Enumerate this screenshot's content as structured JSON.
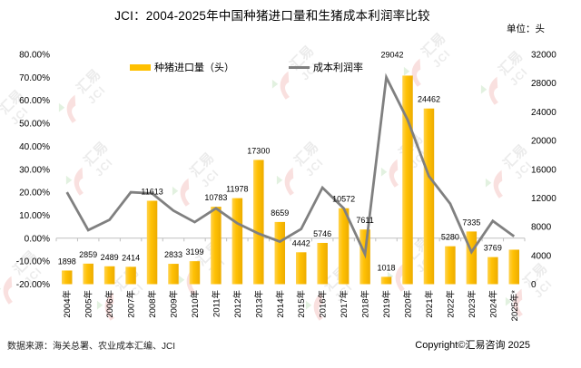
{
  "footer": {
    "source": "数据来源：海关总署、农业成本汇编、JCI",
    "copyright": "Copyright©汇易咨询 2025"
  },
  "watermark": {
    "cn": "汇易",
    "en": "JCI",
    "red": "#E0473C",
    "green": "#54AE45",
    "gray": "#8a8a8a"
  },
  "chart_data": {
    "type": "bar+line combo",
    "title": "JCI：2004-2025年中国种猪进口量和生猪成本利润率比较",
    "unit_label": "单位：头",
    "legend_position": "top",
    "grid": "off",
    "categories": [
      "2004年",
      "2005年",
      "2006年",
      "2007年",
      "2008年",
      "2009年",
      "2010年",
      "2011年",
      "2012年",
      "2013年",
      "2014年",
      "2015年",
      "2016年",
      "2017年",
      "2018年",
      "2019年",
      "2020年",
      "2021年",
      "2022年",
      "2023年",
      "2024年",
      "2025年*"
    ],
    "series": [
      {
        "name": "种猪进口量（头）",
        "type": "bar",
        "axis": "right",
        "color": "#FFC000",
        "values": [
          1898,
          2859,
          2489,
          2414,
          11613,
          2833,
          3199,
          10783,
          11978,
          17300,
          8659,
          4442,
          5746,
          10572,
          7611,
          1018,
          29042,
          24462,
          5280,
          7335,
          3769,
          4800
        ],
        "labels": [
          "1898",
          "2859",
          "2489",
          "2414",
          "11613",
          "2833",
          "3199",
          "10783",
          "11978",
          "17300",
          "8659",
          "4442",
          "5746",
          "10572",
          "7611",
          "1018",
          "29042",
          "24462",
          "5280",
          "7335",
          "3769",
          ""
        ]
      },
      {
        "name": "成本利润率",
        "type": "line",
        "axis": "left",
        "color": "#808080",
        "values_percent": [
          20,
          3.5,
          8,
          20,
          19.5,
          12,
          7,
          13,
          6.5,
          2,
          -1.5,
          4,
          22,
          13,
          -7,
          70,
          51.5,
          27,
          15,
          -6,
          7.5,
          0.8
        ]
      }
    ],
    "left_axis": {
      "min": -20,
      "max": 80,
      "ticks": [
        "80.00%",
        "70.00%",
        "60.00%",
        "50.00%",
        "40.00%",
        "30.00%",
        "20.00%",
        "10.00%",
        "0.00%",
        "-10.00%",
        "-20.00%"
      ]
    },
    "right_axis": {
      "min": 0,
      "max": 32000,
      "ticks": [
        "32000",
        "28000",
        "24000",
        "20000",
        "16000",
        "12000",
        "8000",
        "4000",
        "0"
      ]
    }
  }
}
